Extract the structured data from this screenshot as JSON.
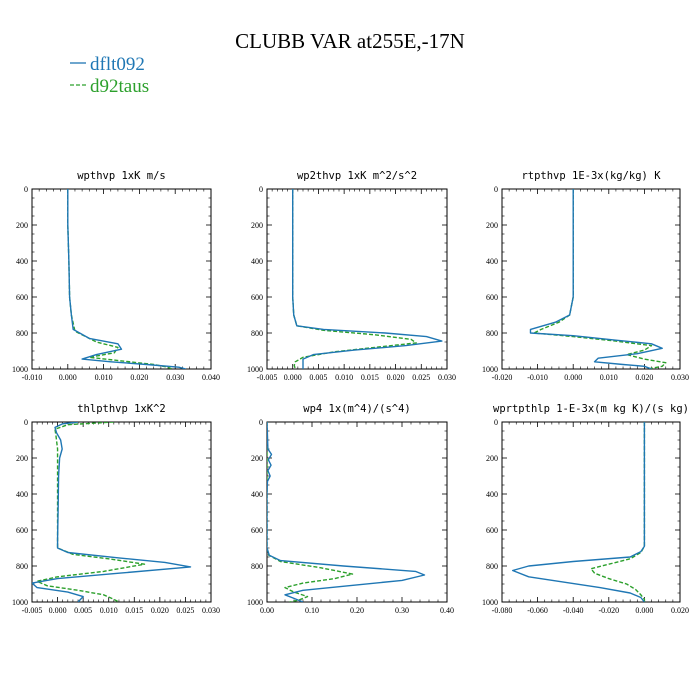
{
  "figure": {
    "title": "CLUBB VAR at255E,-17N"
  },
  "colors": {
    "background": "#ffffff",
    "axis": "#000000"
  },
  "legend": [
    {
      "name": "dflt092",
      "color": "#1f77b4",
      "dash": "solid"
    },
    {
      "name": "d92taus",
      "color": "#2ca02c",
      "dash": "dashed"
    }
  ],
  "chart_data": [
    {
      "type": "line",
      "title": "wpthvp  1xK m/s",
      "xlim": [
        -0.01,
        0.04
      ],
      "ylim": [
        1000,
        0
      ],
      "xticks": [
        "-0.010",
        "0.000",
        "0.010",
        "0.020",
        "0.030",
        "0.040"
      ],
      "xtick_values": [
        -0.01,
        0.0,
        0.01,
        0.02,
        0.03,
        0.04
      ],
      "yticks": [
        "0",
        "200",
        "400",
        "600",
        "800",
        "1000"
      ],
      "ytick_values": [
        0,
        200,
        400,
        600,
        800,
        1000
      ],
      "series": [
        {
          "name": "dflt092",
          "points": [
            [
              0.0,
              0
            ],
            [
              0.0,
              200
            ],
            [
              0.0003,
              400
            ],
            [
              0.0005,
              600
            ],
            [
              0.001,
              700
            ],
            [
              0.0015,
              780
            ],
            [
              0.006,
              830
            ],
            [
              0.014,
              860
            ],
            [
              0.015,
              890
            ],
            [
              0.008,
              920
            ],
            [
              0.004,
              945
            ],
            [
              0.012,
              960
            ],
            [
              0.022,
              975
            ],
            [
              0.031,
              990
            ],
            [
              0.033,
              1000
            ]
          ]
        },
        {
          "name": "d92taus",
          "points": [
            [
              0.0,
              0
            ],
            [
              0.0,
              200
            ],
            [
              0.0003,
              400
            ],
            [
              0.0005,
              600
            ],
            [
              0.001,
              700
            ],
            [
              0.002,
              790
            ],
            [
              0.008,
              850
            ],
            [
              0.014,
              880
            ],
            [
              0.013,
              910
            ],
            [
              0.006,
              935
            ],
            [
              0.015,
              955
            ],
            [
              0.024,
              975
            ],
            [
              0.028,
              990
            ],
            [
              0.029,
              1000
            ]
          ]
        }
      ]
    },
    {
      "type": "line",
      "title": "wp2thvp  1xK m^2/s^2",
      "xlim": [
        -0.005,
        0.03
      ],
      "ylim": [
        1000,
        0
      ],
      "xticks": [
        "-0.005",
        "0.000",
        "0.005",
        "0.010",
        "0.015",
        "0.020",
        "0.025",
        "0.030"
      ],
      "xtick_values": [
        -0.005,
        0.0,
        0.005,
        0.01,
        0.015,
        0.02,
        0.025,
        0.03
      ],
      "yticks": [
        "0",
        "200",
        "400",
        "600",
        "800",
        "1000"
      ],
      "ytick_values": [
        0,
        200,
        400,
        600,
        800,
        1000
      ],
      "series": [
        {
          "name": "dflt092",
          "points": [
            [
              0.0,
              0
            ],
            [
              0.0,
              200
            ],
            [
              0.0,
              400
            ],
            [
              0.0,
              600
            ],
            [
              0.0002,
              700
            ],
            [
              0.0008,
              760
            ],
            [
              0.006,
              780
            ],
            [
              0.018,
              800
            ],
            [
              0.026,
              820
            ],
            [
              0.029,
              845
            ],
            [
              0.022,
              870
            ],
            [
              0.012,
              895
            ],
            [
              0.004,
              920
            ],
            [
              0.002,
              945
            ],
            [
              0.002,
              975
            ],
            [
              0.002,
              1000
            ]
          ]
        },
        {
          "name": "d92taus",
          "points": [
            [
              0.0,
              0
            ],
            [
              0.0,
              200
            ],
            [
              0.0,
              400
            ],
            [
              0.0,
              600
            ],
            [
              0.0002,
              700
            ],
            [
              0.0008,
              760
            ],
            [
              0.006,
              785
            ],
            [
              0.016,
              810
            ],
            [
              0.023,
              835
            ],
            [
              0.024,
              855
            ],
            [
              0.016,
              880
            ],
            [
              0.008,
              905
            ],
            [
              0.002,
              935
            ],
            [
              0.0005,
              960
            ],
            [
              0.0003,
              980
            ],
            [
              0.0005,
              1000
            ]
          ]
        }
      ]
    },
    {
      "type": "line",
      "title": "rtpthvp  1E-3x(kg/kg) K",
      "xlim": [
        -0.02,
        0.03
      ],
      "ylim": [
        1000,
        0
      ],
      "xticks": [
        "-0.020",
        "-0.010",
        "0.000",
        "0.010",
        "0.020",
        "0.030"
      ],
      "xtick_values": [
        -0.02,
        -0.01,
        0.0,
        0.01,
        0.02,
        0.03
      ],
      "yticks": [
        "0",
        "200",
        "400",
        "600",
        "800",
        "1000"
      ],
      "ytick_values": [
        0,
        200,
        400,
        600,
        800,
        1000
      ],
      "series": [
        {
          "name": "dflt092",
          "points": [
            [
              0.0,
              0
            ],
            [
              0.0,
              200
            ],
            [
              0.0,
              400
            ],
            [
              0.0,
              600
            ],
            [
              -0.001,
              700
            ],
            [
              -0.005,
              740
            ],
            [
              -0.012,
              780
            ],
            [
              -0.012,
              800
            ],
            [
              0.0,
              815
            ],
            [
              0.012,
              840
            ],
            [
              0.022,
              860
            ],
            [
              0.025,
              885
            ],
            [
              0.018,
              915
            ],
            [
              0.007,
              940
            ],
            [
              0.006,
              960
            ],
            [
              0.014,
              975
            ],
            [
              0.02,
              985
            ],
            [
              0.022,
              1000
            ]
          ]
        },
        {
          "name": "d92taus",
          "points": [
            [
              0.0,
              0
            ],
            [
              0.0,
              200
            ],
            [
              0.0,
              400
            ],
            [
              0.0,
              600
            ],
            [
              -0.001,
              700
            ],
            [
              -0.004,
              740
            ],
            [
              -0.009,
              780
            ],
            [
              -0.011,
              800
            ],
            [
              0.0,
              820
            ],
            [
              0.012,
              845
            ],
            [
              0.022,
              870
            ],
            [
              0.02,
              895
            ],
            [
              0.015,
              920
            ],
            [
              0.02,
              945
            ],
            [
              0.026,
              965
            ],
            [
              0.025,
              985
            ],
            [
              0.021,
              1000
            ]
          ]
        }
      ]
    },
    {
      "type": "line",
      "title": "thlpthvp  1xK^2",
      "xlim": [
        -0.005,
        0.03
      ],
      "ylim": [
        1000,
        0
      ],
      "xticks": [
        "-0.005",
        "0.000",
        "0.005",
        "0.010",
        "0.015",
        "0.020",
        "0.025",
        "0.030"
      ],
      "xtick_values": [
        -0.005,
        0.0,
        0.005,
        0.01,
        0.015,
        0.02,
        0.025,
        0.03
      ],
      "yticks": [
        "0",
        "200",
        "400",
        "600",
        "800",
        "1000"
      ],
      "ytick_values": [
        0,
        200,
        400,
        600,
        800,
        1000
      ],
      "series": [
        {
          "name": "dflt092",
          "points": [
            [
              0.004,
              0
            ],
            [
              0.001,
              10
            ],
            [
              -0.0005,
              30
            ],
            [
              -0.0002,
              60
            ],
            [
              0.0006,
              100
            ],
            [
              0.0009,
              150
            ],
            [
              0.0004,
              200
            ],
            [
              0.0002,
              300
            ],
            [
              0.0001,
              500
            ],
            [
              0.0,
              650
            ],
            [
              0.0,
              700
            ],
            [
              0.002,
              725
            ],
            [
              0.012,
              755
            ],
            [
              0.021,
              780
            ],
            [
              0.026,
              805
            ],
            [
              0.012,
              840
            ],
            [
              0.0,
              870
            ],
            [
              -0.005,
              895
            ],
            [
              -0.004,
              920
            ],
            [
              0.002,
              945
            ],
            [
              0.005,
              970
            ],
            [
              0.004,
              1000
            ]
          ]
        },
        {
          "name": "d92taus",
          "points": [
            [
              0.011,
              0
            ],
            [
              0.008,
              5
            ],
            [
              0.002,
              15
            ],
            [
              -0.0005,
              40
            ],
            [
              -0.0003,
              80
            ],
            [
              0.0,
              150
            ],
            [
              0.0,
              300
            ],
            [
              0.0,
              500
            ],
            [
              0.0,
              650
            ],
            [
              0.0,
              700
            ],
            [
              0.003,
              735
            ],
            [
              0.01,
              760
            ],
            [
              0.017,
              790
            ],
            [
              0.009,
              830
            ],
            [
              0.0,
              860
            ],
            [
              -0.004,
              885
            ],
            [
              -0.002,
              910
            ],
            [
              0.004,
              935
            ],
            [
              0.009,
              960
            ],
            [
              0.011,
              985
            ],
            [
              0.012,
              1000
            ]
          ]
        }
      ]
    },
    {
      "type": "line",
      "title": "wp4  1x(m^4)/(s^4)",
      "xlim": [
        0.0,
        0.4
      ],
      "ylim": [
        1000,
        0
      ],
      "xticks": [
        "0.00",
        "0.10",
        "0.20",
        "0.30",
        "0.40"
      ],
      "xtick_values": [
        0.0,
        0.1,
        0.2,
        0.3,
        0.4
      ],
      "yticks": [
        "0",
        "200",
        "400",
        "600",
        "800",
        "1000"
      ],
      "ytick_values": [
        0,
        200,
        400,
        600,
        800,
        1000
      ],
      "series": [
        {
          "name": "dflt092",
          "points": [
            [
              0.0,
              0
            ],
            [
              0.002,
              150
            ],
            [
              0.01,
              180
            ],
            [
              0.003,
              210
            ],
            [
              0.009,
              240
            ],
            [
              0.002,
              270
            ],
            [
              0.007,
              300
            ],
            [
              0.001,
              330
            ],
            [
              0.0,
              400
            ],
            [
              0.0,
              600
            ],
            [
              0.0,
              700
            ],
            [
              0.005,
              740
            ],
            [
              0.03,
              770
            ],
            [
              0.17,
              800
            ],
            [
              0.33,
              830
            ],
            [
              0.35,
              850
            ],
            [
              0.3,
              880
            ],
            [
              0.18,
              910
            ],
            [
              0.08,
              935
            ],
            [
              0.04,
              960
            ],
            [
              0.06,
              980
            ],
            [
              0.08,
              1000
            ]
          ]
        },
        {
          "name": "d92taus",
          "points": [
            [
              0.0,
              0
            ],
            [
              0.0,
              200
            ],
            [
              0.0,
              400
            ],
            [
              0.0,
              600
            ],
            [
              0.0,
              700
            ],
            [
              0.004,
              740
            ],
            [
              0.03,
              775
            ],
            [
              0.12,
              810
            ],
            [
              0.19,
              845
            ],
            [
              0.15,
              870
            ],
            [
              0.08,
              895
            ],
            [
              0.04,
              920
            ],
            [
              0.06,
              945
            ],
            [
              0.09,
              970
            ],
            [
              0.07,
              990
            ],
            [
              0.05,
              1000
            ]
          ]
        }
      ]
    },
    {
      "type": "line",
      "title": "wprtpthlp  1-E-3x(m kg K)/(s kg)",
      "xlim": [
        -0.08,
        0.02
      ],
      "ylim": [
        1000,
        0
      ],
      "xticks": [
        "-0.080",
        "-0.060",
        "-0.040",
        "-0.020",
        "0.000",
        "0.020"
      ],
      "xtick_values": [
        -0.08,
        -0.06,
        -0.04,
        -0.02,
        0.0,
        0.02
      ],
      "yticks": [
        "0",
        "200",
        "400",
        "600",
        "800",
        "1000"
      ],
      "ytick_values": [
        0,
        200,
        400,
        600,
        800,
        1000
      ],
      "series": [
        {
          "name": "dflt092",
          "points": [
            [
              0.0,
              0
            ],
            [
              0.0,
              200
            ],
            [
              0.0,
              400
            ],
            [
              0.0,
              600
            ],
            [
              0.0,
              690
            ],
            [
              -0.002,
              720
            ],
            [
              -0.008,
              750
            ],
            [
              -0.04,
              775
            ],
            [
              -0.065,
              800
            ],
            [
              -0.074,
              825
            ],
            [
              -0.065,
              860
            ],
            [
              -0.045,
              890
            ],
            [
              -0.025,
              920
            ],
            [
              -0.008,
              950
            ],
            [
              -0.002,
              975
            ],
            [
              0.0,
              1000
            ]
          ]
        },
        {
          "name": "d92taus",
          "points": [
            [
              0.0,
              0
            ],
            [
              0.0,
              200
            ],
            [
              0.0,
              400
            ],
            [
              0.0,
              600
            ],
            [
              0.0,
              690
            ],
            [
              -0.002,
              725
            ],
            [
              -0.008,
              760
            ],
            [
              -0.02,
              790
            ],
            [
              -0.03,
              815
            ],
            [
              -0.028,
              840
            ],
            [
              -0.02,
              870
            ],
            [
              -0.01,
              900
            ],
            [
              -0.005,
              930
            ],
            [
              -0.002,
              960
            ],
            [
              0.0,
              985
            ],
            [
              0.0,
              1000
            ]
          ]
        }
      ]
    }
  ]
}
